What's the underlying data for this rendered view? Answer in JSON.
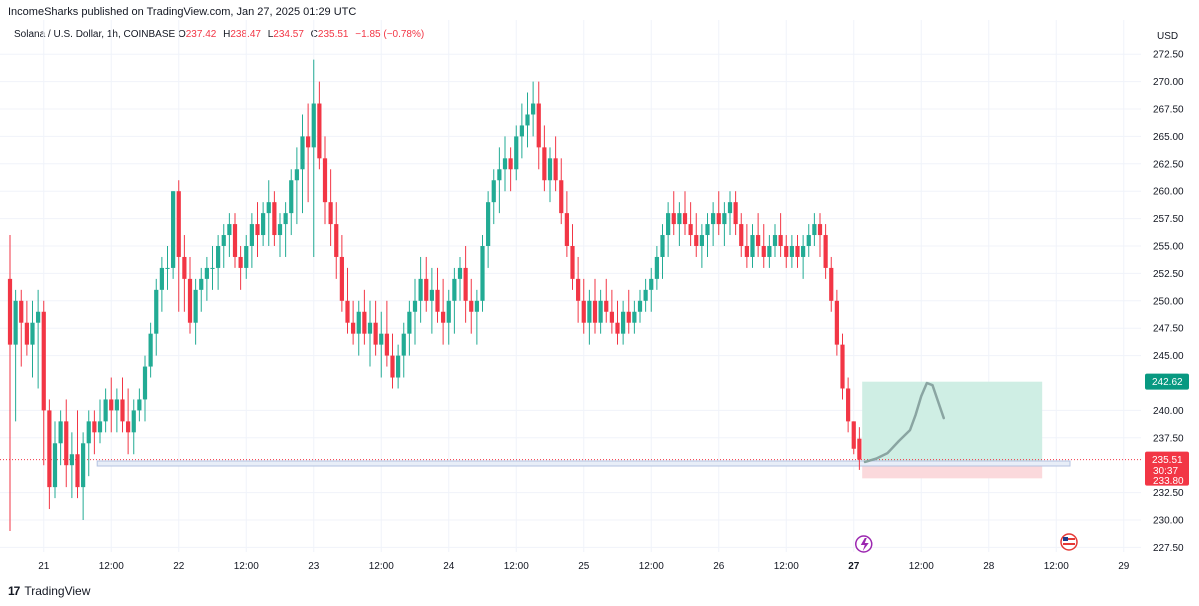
{
  "header": {
    "published": "IncomeSharks published on TradingView.com, Jan 27, 2025 01:29 UTC"
  },
  "legend": {
    "symbol": "Solana / U.S. Dollar, 1h, COINBASE",
    "open_label": "O",
    "open": "237.42",
    "high_label": "H",
    "high": "238.47",
    "low_label": "L",
    "low": "234.57",
    "close_label": "C",
    "close": "235.51",
    "change": "−1.85 (−0.78%)"
  },
  "footer": {
    "brand": "TradingView",
    "logo_glyph": "17"
  },
  "colors": {
    "up": "#22ab94",
    "down": "#f23645",
    "grid": "#f0f3fa",
    "target_zone": "#cfeee4",
    "stop_zone": "#fbd9dc",
    "level_line": "#b4c3e1",
    "arc": "#8aa5a2"
  },
  "chart_data": {
    "type": "candlestick",
    "ylabel": "USD",
    "ylim": [
      226,
      274
    ],
    "y_ticks": [
      "272.50",
      "270.00",
      "267.50",
      "265.00",
      "262.50",
      "260.00",
      "257.50",
      "255.00",
      "252.50",
      "250.00",
      "247.50",
      "245.00",
      "242.62",
      "240.00",
      "237.50",
      "235.51",
      "233.80",
      "232.50",
      "230.00",
      "227.50"
    ],
    "x_ticks": [
      {
        "label": "21",
        "t": 6
      },
      {
        "label": "12:00",
        "t": 18
      },
      {
        "label": "22",
        "t": 30
      },
      {
        "label": "12:00",
        "t": 42
      },
      {
        "label": "23",
        "t": 54
      },
      {
        "label": "12:00",
        "t": 66
      },
      {
        "label": "24",
        "t": 78
      },
      {
        "label": "12:00",
        "t": 90
      },
      {
        "label": "25",
        "t": 102
      },
      {
        "label": "12:00",
        "t": 114
      },
      {
        "label": "26",
        "t": 126
      },
      {
        "label": "12:00",
        "t": 138
      },
      {
        "label": "27",
        "t": 150
      },
      {
        "label": "12:00",
        "t": 162
      },
      {
        "label": "28",
        "t": 174
      },
      {
        "label": "12:00",
        "t": 186
      },
      {
        "label": "29",
        "t": 198
      }
    ],
    "price_labels": {
      "target": "242.62",
      "last": "235.51",
      "countdown": "30:37",
      "stop": "233.80"
    },
    "support_level": 235.2,
    "position": {
      "entry": 235.3,
      "target": 242.62,
      "stop": 233.8,
      "start_t": 151.5,
      "end_t": 183.5
    },
    "projection": [
      [
        152,
        235.3
      ],
      [
        154,
        235.6
      ],
      [
        156,
        236.1
      ],
      [
        158,
        237.2
      ],
      [
        160,
        238.2
      ],
      [
        161,
        239.6
      ],
      [
        162,
        241.3
      ],
      [
        163,
        242.5
      ],
      [
        164,
        242.3
      ],
      [
        165,
        240.8
      ],
      [
        166,
        239.3
      ]
    ],
    "candles": [
      [
        252,
        256,
        229,
        246
      ],
      [
        246,
        251,
        239,
        250
      ],
      [
        250,
        251,
        244,
        248
      ],
      [
        248,
        250,
        245,
        246
      ],
      [
        246,
        250,
        243,
        248
      ],
      [
        248,
        251,
        242,
        249
      ],
      [
        249,
        250,
        235,
        240
      ],
      [
        240,
        241,
        231,
        233
      ],
      [
        233,
        239,
        232,
        237
      ],
      [
        237,
        240,
        235,
        239
      ],
      [
        239,
        241,
        233,
        235
      ],
      [
        235,
        238,
        232,
        236
      ],
      [
        236,
        240,
        232,
        233
      ],
      [
        233,
        238,
        230,
        237
      ],
      [
        237,
        240,
        234,
        239
      ],
      [
        239,
        240,
        236,
        238
      ],
      [
        238,
        241,
        237,
        239
      ],
      [
        239,
        242,
        238,
        241
      ],
      [
        241,
        243,
        238,
        240
      ],
      [
        240,
        242,
        238,
        241
      ],
      [
        241,
        243,
        238,
        239
      ],
      [
        239,
        242,
        236,
        238
      ],
      [
        238,
        241,
        236,
        240
      ],
      [
        240,
        242,
        239,
        241
      ],
      [
        241,
        245,
        239,
        244
      ],
      [
        244,
        248,
        243,
        247
      ],
      [
        247,
        252,
        245,
        251
      ],
      [
        251,
        254,
        249,
        253
      ],
      [
        253,
        255,
        251,
        253
      ],
      [
        253,
        260,
        252,
        260
      ],
      [
        260,
        261,
        249,
        254
      ],
      [
        254,
        256,
        249,
        252
      ],
      [
        252,
        254,
        247,
        248
      ],
      [
        248,
        252,
        246,
        251
      ],
      [
        251,
        253,
        249,
        252
      ],
      [
        252,
        254,
        250,
        253
      ],
      [
        253,
        255,
        251,
        253
      ],
      [
        253,
        256,
        251,
        255
      ],
      [
        255,
        257,
        253,
        256
      ],
      [
        256,
        258,
        254,
        257
      ],
      [
        257,
        258,
        253,
        254
      ],
      [
        254,
        255,
        251,
        253
      ],
      [
        253,
        256,
        252,
        255
      ],
      [
        255,
        258,
        253,
        257
      ],
      [
        257,
        259,
        254,
        256
      ],
      [
        256,
        259,
        255,
        258
      ],
      [
        258,
        261,
        255,
        259
      ],
      [
        259,
        260,
        255,
        256
      ],
      [
        256,
        258,
        254,
        257
      ],
      [
        257,
        259,
        254,
        258
      ],
      [
        258,
        262,
        256,
        261
      ],
      [
        261,
        264,
        257,
        262
      ],
      [
        262,
        267,
        258,
        265
      ],
      [
        265,
        268,
        259,
        264
      ],
      [
        264,
        272,
        254,
        268
      ],
      [
        268,
        270,
        262,
        263
      ],
      [
        263,
        265,
        257,
        259
      ],
      [
        259,
        262,
        255,
        257
      ],
      [
        257,
        259,
        252,
        254
      ],
      [
        254,
        256,
        249,
        250
      ],
      [
        250,
        253,
        247,
        248
      ],
      [
        248,
        250,
        246,
        247
      ],
      [
        247,
        250,
        245,
        249
      ],
      [
        249,
        251,
        246,
        247
      ],
      [
        247,
        250,
        244,
        248
      ],
      [
        248,
        250,
        245,
        246
      ],
      [
        246,
        249,
        243,
        247
      ],
      [
        247,
        250,
        244,
        245
      ],
      [
        245,
        247,
        242,
        243
      ],
      [
        243,
        246,
        242,
        245
      ],
      [
        245,
        248,
        243,
        247
      ],
      [
        247,
        250,
        245,
        249
      ],
      [
        249,
        252,
        246,
        250
      ],
      [
        250,
        254,
        248,
        252
      ],
      [
        252,
        254,
        249,
        250
      ],
      [
        250,
        253,
        247,
        251
      ],
      [
        251,
        253,
        248,
        249
      ],
      [
        249,
        252,
        246,
        248
      ],
      [
        248,
        251,
        246,
        250
      ],
      [
        250,
        253,
        247,
        252
      ],
      [
        252,
        254,
        250,
        253
      ],
      [
        253,
        255,
        248,
        250
      ],
      [
        250,
        252,
        247,
        249
      ],
      [
        249,
        251,
        246,
        250
      ],
      [
        250,
        256,
        249,
        255
      ],
      [
        255,
        260,
        253,
        259
      ],
      [
        259,
        262,
        257,
        261
      ],
      [
        261,
        264,
        258,
        262
      ],
      [
        262,
        265,
        260,
        263
      ],
      [
        263,
        264,
        260,
        262
      ],
      [
        262,
        266,
        261,
        265
      ],
      [
        265,
        268,
        263,
        266
      ],
      [
        266,
        269,
        264,
        267
      ],
      [
        267,
        270,
        265,
        268
      ],
      [
        268,
        270,
        262,
        264
      ],
      [
        264,
        266,
        260,
        261
      ],
      [
        261,
        264,
        259,
        263
      ],
      [
        263,
        265,
        260,
        261
      ],
      [
        261,
        263,
        257,
        258
      ],
      [
        258,
        260,
        254,
        255
      ],
      [
        255,
        257,
        251,
        252
      ],
      [
        252,
        254,
        248,
        250
      ],
      [
        250,
        252,
        247,
        248
      ],
      [
        248,
        251,
        246,
        250
      ],
      [
        250,
        252,
        247,
        248
      ],
      [
        248,
        251,
        247,
        250
      ],
      [
        250,
        252,
        248,
        249
      ],
      [
        249,
        251,
        247,
        248
      ],
      [
        248,
        250,
        246,
        247
      ],
      [
        247,
        250,
        246,
        249
      ],
      [
        249,
        251,
        247,
        248
      ],
      [
        248,
        250,
        247,
        249
      ],
      [
        249,
        251,
        248,
        250
      ],
      [
        250,
        252,
        249,
        251
      ],
      [
        251,
        253,
        249,
        252
      ],
      [
        252,
        255,
        251,
        254
      ],
      [
        254,
        257,
        252,
        256
      ],
      [
        256,
        259,
        254,
        258
      ],
      [
        258,
        260,
        256,
        257
      ],
      [
        257,
        259,
        255,
        258
      ],
      [
        258,
        260,
        256,
        257
      ],
      [
        257,
        259,
        255,
        256
      ],
      [
        256,
        258,
        254,
        255
      ],
      [
        255,
        257,
        253,
        256
      ],
      [
        256,
        258,
        254,
        257
      ],
      [
        257,
        259,
        255,
        258
      ],
      [
        258,
        260,
        256,
        257
      ],
      [
        257,
        259,
        255,
        258
      ],
      [
        258,
        260,
        256,
        259
      ],
      [
        259,
        260,
        256,
        257
      ],
      [
        257,
        258,
        254,
        255
      ],
      [
        255,
        257,
        253,
        254
      ],
      [
        254,
        257,
        253,
        256
      ],
      [
        256,
        258,
        254,
        255
      ],
      [
        255,
        257,
        253,
        254
      ],
      [
        254,
        256,
        253,
        255
      ],
      [
        255,
        257,
        254,
        256
      ],
      [
        256,
        258,
        254,
        255
      ],
      [
        255,
        256,
        253,
        254
      ],
      [
        254,
        256,
        253,
        255
      ],
      [
        255,
        256,
        253,
        254
      ],
      [
        254,
        256,
        252,
        255
      ],
      [
        255,
        257,
        254,
        256
      ],
      [
        256,
        258,
        255,
        257
      ],
      [
        257,
        258,
        254,
        256
      ],
      [
        256,
        257,
        252,
        253
      ],
      [
        253,
        254,
        249,
        250
      ],
      [
        250,
        251,
        245,
        246
      ],
      [
        246,
        247,
        241,
        242
      ],
      [
        242,
        243,
        238,
        239
      ],
      [
        239,
        239,
        236,
        236.5
      ],
      [
        237.42,
        238.47,
        234.57,
        235.51
      ]
    ]
  }
}
